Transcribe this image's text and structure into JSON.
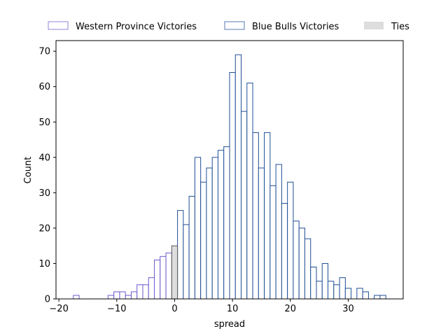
{
  "chart_data": {
    "type": "bar",
    "subtype": "histogram",
    "xlabel": "spread",
    "ylabel": "Count",
    "xlim": [
      -20.5,
      39.5
    ],
    "ylim": [
      0,
      73
    ],
    "xticks": [
      -20,
      -10,
      0,
      10,
      20,
      30
    ],
    "yticks": [
      0,
      10,
      20,
      30,
      40,
      50,
      60,
      70
    ],
    "grid": false,
    "legend_position": "top",
    "bin_width": 1,
    "series": [
      {
        "name": "Western Province Victories",
        "style": "outline",
        "edge_color": "#6a5acd",
        "fill_color": "#ffffff",
        "bins": [
          {
            "x": -17,
            "value": 1
          },
          {
            "x": -11,
            "value": 1
          },
          {
            "x": -10,
            "value": 2
          },
          {
            "x": -9,
            "value": 2
          },
          {
            "x": -8,
            "value": 1
          },
          {
            "x": -7,
            "value": 2
          },
          {
            "x": -6,
            "value": 4
          },
          {
            "x": -5,
            "value": 4
          },
          {
            "x": -4,
            "value": 6
          },
          {
            "x": -3,
            "value": 11
          },
          {
            "x": -2,
            "value": 12
          },
          {
            "x": -1,
            "value": 13
          }
        ]
      },
      {
        "name": "Blue Bulls Victories",
        "style": "outline",
        "edge_color": "#1f4e96",
        "fill_color": "#ffffff",
        "bins": [
          {
            "x": 1,
            "value": 25
          },
          {
            "x": 2,
            "value": 21
          },
          {
            "x": 3,
            "value": 29
          },
          {
            "x": 4,
            "value": 40
          },
          {
            "x": 5,
            "value": 33
          },
          {
            "x": 6,
            "value": 37
          },
          {
            "x": 7,
            "value": 40
          },
          {
            "x": 8,
            "value": 42
          },
          {
            "x": 9,
            "value": 43
          },
          {
            "x": 10,
            "value": 64
          },
          {
            "x": 11,
            "value": 69
          },
          {
            "x": 12,
            "value": 53
          },
          {
            "x": 13,
            "value": 61
          },
          {
            "x": 14,
            "value": 47
          },
          {
            "x": 15,
            "value": 37
          },
          {
            "x": 16,
            "value": 47
          },
          {
            "x": 17,
            "value": 32
          },
          {
            "x": 18,
            "value": 38
          },
          {
            "x": 19,
            "value": 27
          },
          {
            "x": 20,
            "value": 33
          },
          {
            "x": 21,
            "value": 22
          },
          {
            "x": 22,
            "value": 20
          },
          {
            "x": 23,
            "value": 17
          },
          {
            "x": 24,
            "value": 9
          },
          {
            "x": 25,
            "value": 5
          },
          {
            "x": 26,
            "value": 10
          },
          {
            "x": 27,
            "value": 5
          },
          {
            "x": 28,
            "value": 4
          },
          {
            "x": 29,
            "value": 6
          },
          {
            "x": 30,
            "value": 3
          },
          {
            "x": 32,
            "value": 3
          },
          {
            "x": 33,
            "value": 2
          },
          {
            "x": 35,
            "value": 1
          },
          {
            "x": 36,
            "value": 1
          }
        ]
      },
      {
        "name": "Ties",
        "style": "filled",
        "edge_color": "#555555",
        "fill_color": "#dddddd",
        "bins": [
          {
            "x": 0,
            "value": 15
          }
        ]
      }
    ]
  }
}
